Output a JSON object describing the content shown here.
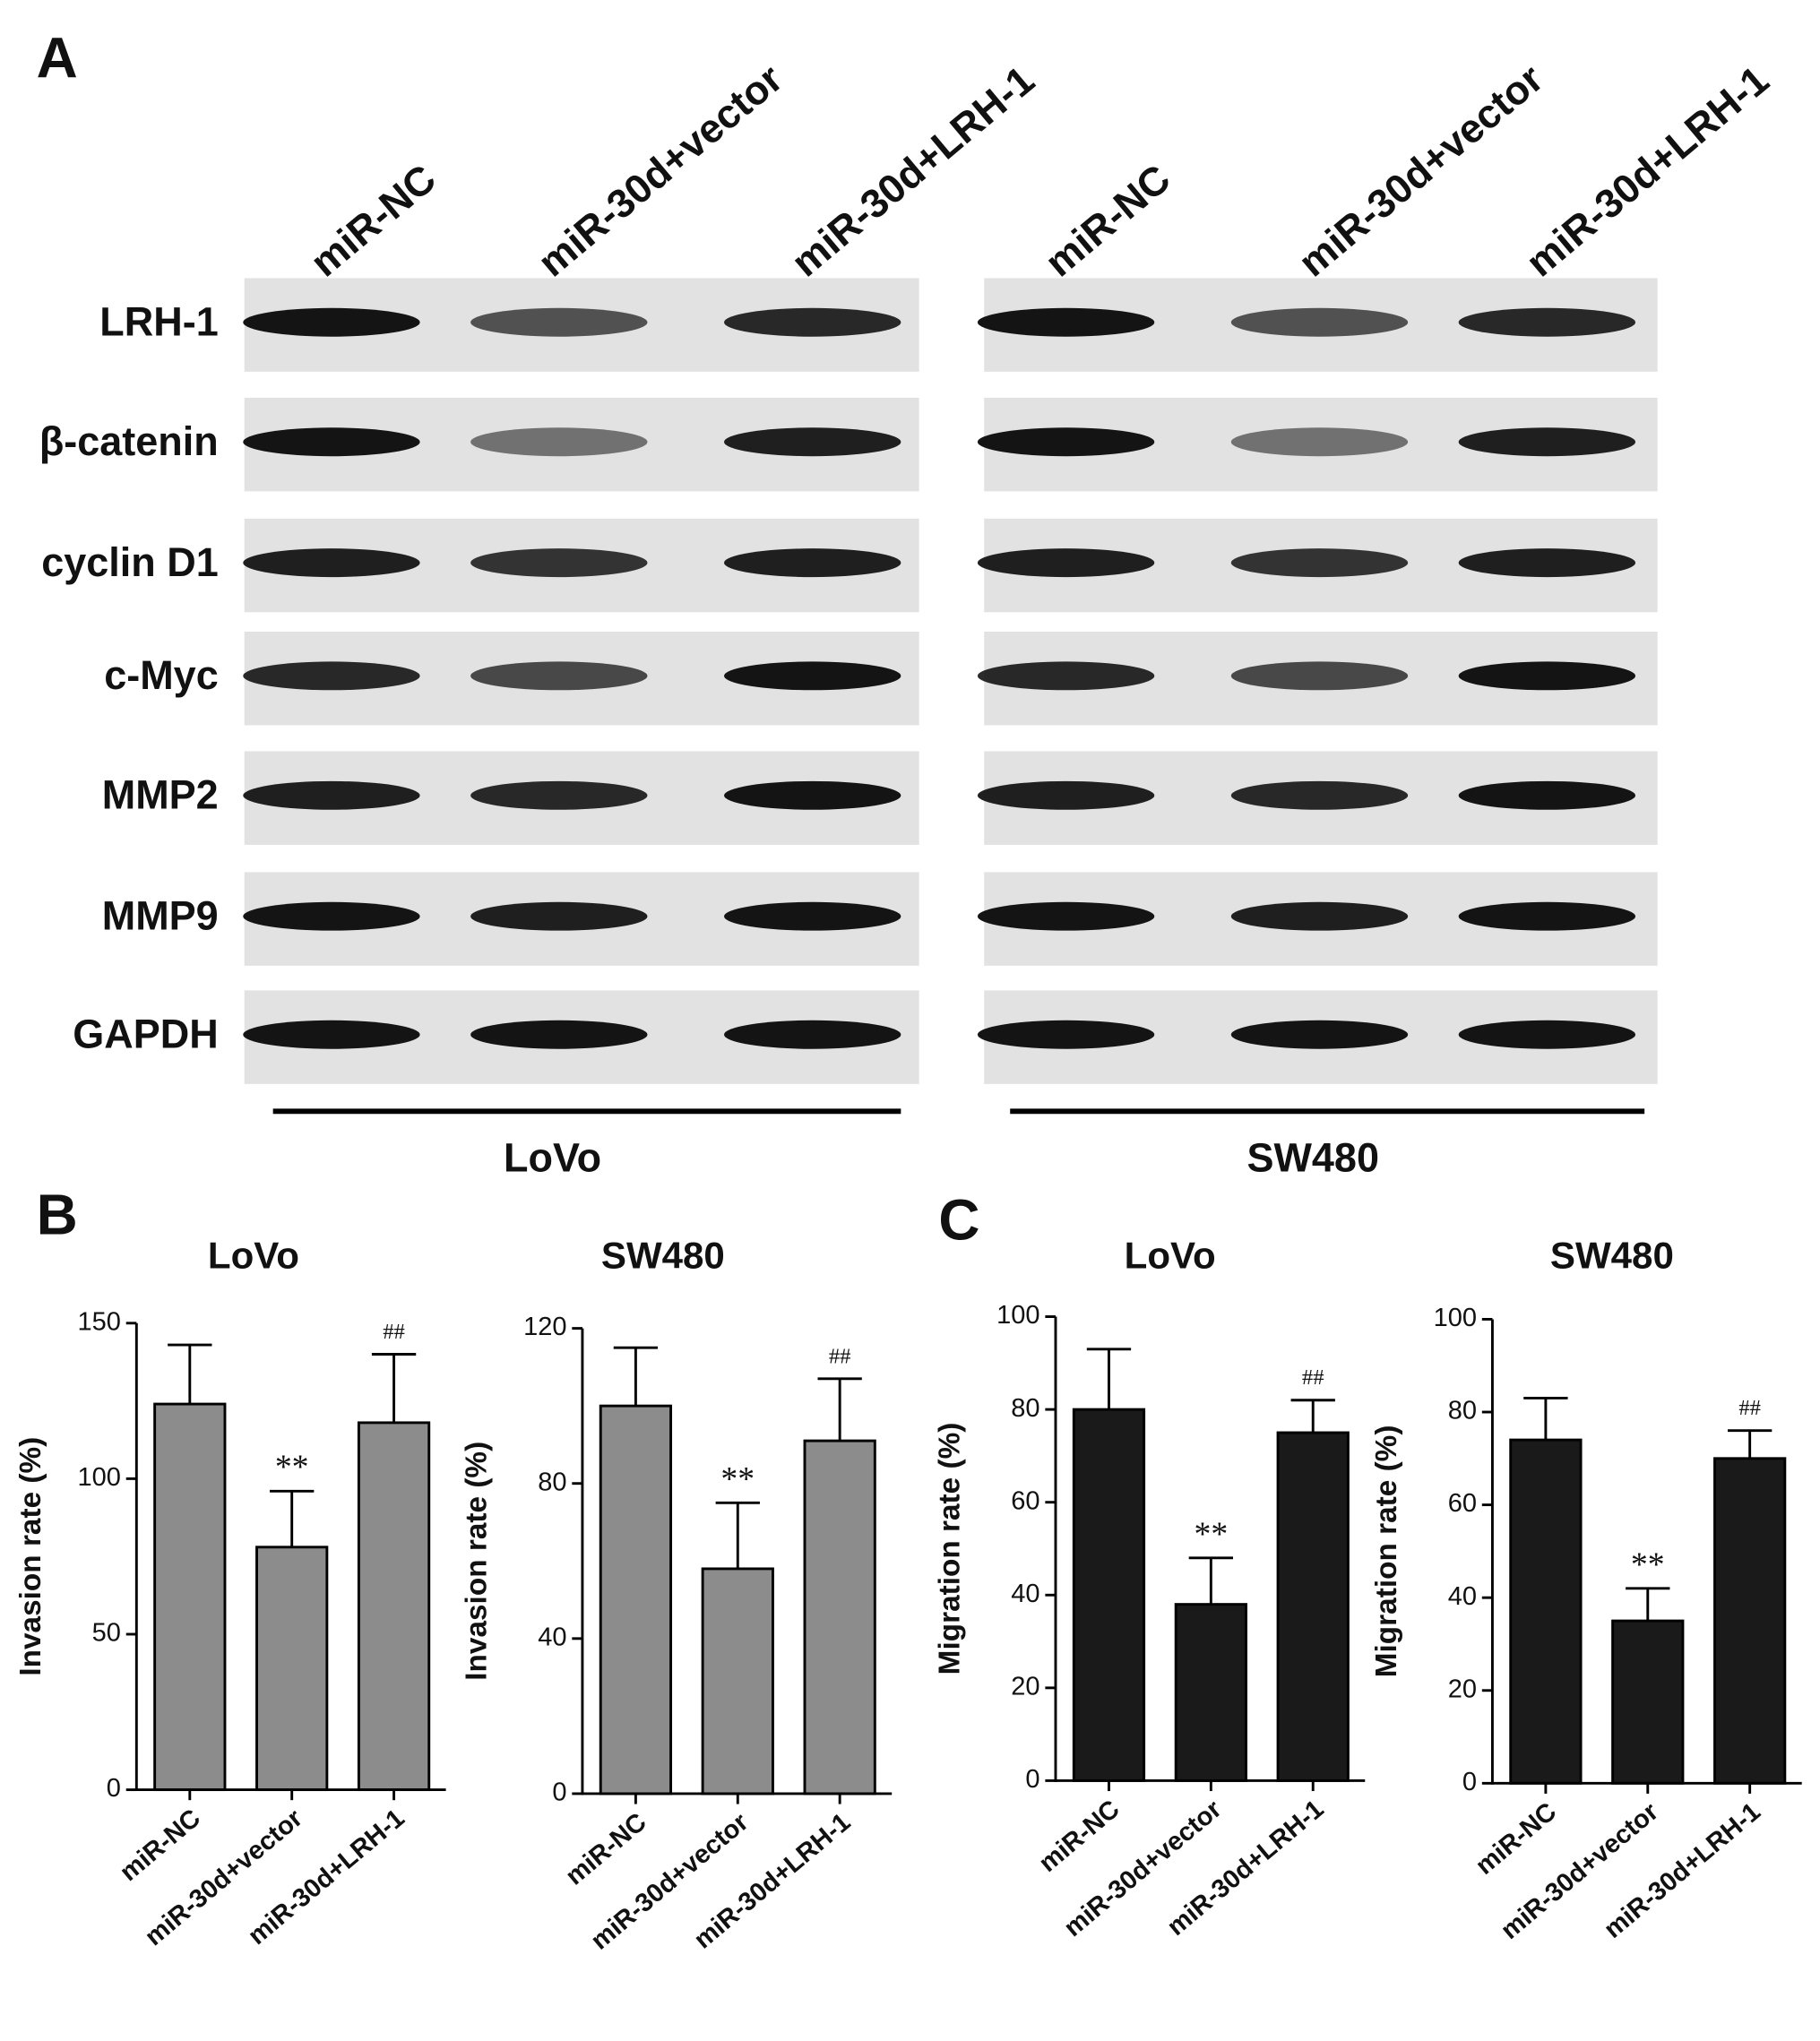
{
  "panels": [
    "A",
    "B",
    "C"
  ],
  "blot": {
    "lanes": [
      "miR-NC",
      "miR-30d+vector",
      "miR-30d+LRH-1"
    ],
    "proteins": [
      "LRH-1",
      "β-catenin",
      "cyclin D1",
      "c-Myc",
      "MMP2",
      "MMP9",
      "GAPDH"
    ],
    "cell_lines": [
      "LoVo",
      "SW480"
    ]
  },
  "chart_data": [
    {
      "type": "bar",
      "title": "LoVo",
      "y_label": "Invasion rate (%)",
      "categories": [
        "miR-NC",
        "miR-30d+vector",
        "miR-30d+LRH-1"
      ],
      "values": [
        124,
        78,
        118
      ],
      "errors": [
        19,
        18,
        22
      ],
      "color": "#8c8c8c",
      "annotations": [
        {
          "x": "miR-30d+vector",
          "text": "**"
        },
        {
          "x": "miR-30d+LRH-1",
          "text": "##"
        }
      ],
      "ylim": [
        0,
        150
      ],
      "yticks": [
        0,
        50,
        100,
        150
      ]
    },
    {
      "type": "bar",
      "title": "SW480",
      "y_label": "Invasion rate (%)",
      "categories": [
        "miR-NC",
        "miR-30d+vector",
        "miR-30d+LRH-1"
      ],
      "values": [
        100,
        58,
        91
      ],
      "errors": [
        15,
        17,
        16
      ],
      "color": "#8c8c8c",
      "annotations": [
        {
          "x": "miR-30d+vector",
          "text": "**"
        },
        {
          "x": "miR-30d+LRH-1",
          "text": "##"
        }
      ],
      "ylim": [
        0,
        120
      ],
      "yticks": [
        0,
        40,
        80,
        120
      ]
    },
    {
      "type": "bar",
      "title": "LoVo",
      "y_label": "Migration rate (%)",
      "categories": [
        "miR-NC",
        "miR-30d+vector",
        "miR-30d+LRH-1"
      ],
      "values": [
        80,
        38,
        75
      ],
      "errors": [
        13,
        10,
        7
      ],
      "color": "#1a1a1a",
      "annotations": [
        {
          "x": "miR-30d+vector",
          "text": "**"
        },
        {
          "x": "miR-30d+LRH-1",
          "text": "##"
        }
      ],
      "ylim": [
        0,
        100
      ],
      "yticks": [
        0,
        20,
        40,
        60,
        80,
        100
      ]
    },
    {
      "type": "bar",
      "title": "SW480",
      "y_label": "Migration rate (%)",
      "categories": [
        "miR-NC",
        "miR-30d+vector",
        "miR-30d+LRH-1"
      ],
      "values": [
        74,
        35,
        70
      ],
      "errors": [
        9,
        7,
        6
      ],
      "color": "#1a1a1a",
      "annotations": [
        {
          "x": "miR-30d+vector",
          "text": "**"
        },
        {
          "x": "miR-30d+LRH-1",
          "text": "##"
        }
      ],
      "ylim": [
        0,
        100
      ],
      "yticks": [
        0,
        20,
        40,
        60,
        80,
        100
      ]
    }
  ]
}
